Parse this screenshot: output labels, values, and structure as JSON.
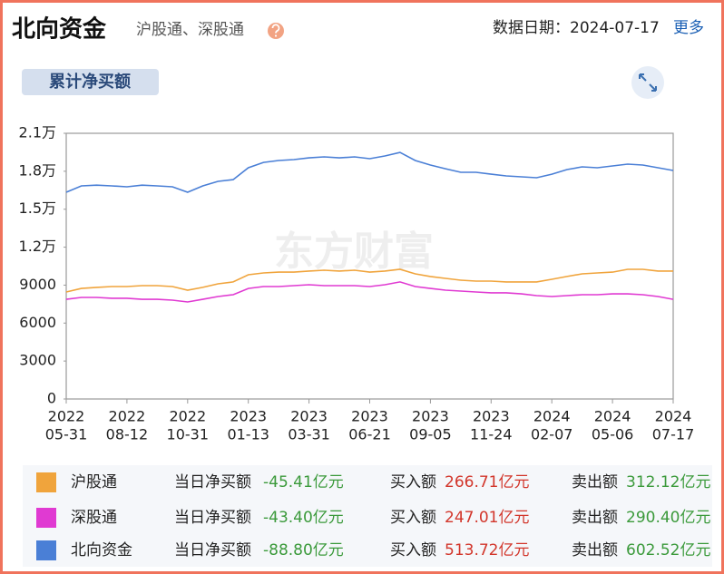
{
  "header": {
    "title": "北向资金",
    "subtitle": "沪股通、深股通",
    "date_label": "数据日期：2024-07-17",
    "more": "更多",
    "tab": "累计净买额"
  },
  "chart_data": {
    "type": "line",
    "watermark": "东方财富",
    "categories": [
      [
        "2022",
        "05-31"
      ],
      null,
      null,
      null,
      [
        "2022",
        "08-12"
      ],
      null,
      null,
      null,
      [
        "2022",
        "10-31"
      ],
      null,
      null,
      null,
      [
        "2023",
        "01-13"
      ],
      null,
      null,
      null,
      [
        "2023",
        "03-31"
      ],
      null,
      null,
      null,
      [
        "2023",
        "06-21"
      ],
      null,
      null,
      null,
      [
        "2023",
        "09-05"
      ],
      null,
      null,
      null,
      [
        "2023",
        "11-24"
      ],
      null,
      null,
      null,
      [
        "2024",
        "02-07"
      ],
      null,
      null,
      null,
      [
        "2024",
        "05-06"
      ],
      null,
      null,
      null,
      [
        "2024",
        "07-17"
      ]
    ],
    "series": [
      {
        "name": "沪股通",
        "color": "#f0a43c",
        "values": [
          8460,
          8740,
          8820,
          8890,
          8890,
          8960,
          8960,
          8890,
          8600,
          8820,
          9100,
          9250,
          9820,
          9960,
          10030,
          10030,
          10110,
          10180,
          10110,
          10180,
          10030,
          10110,
          10250,
          9890,
          9680,
          9530,
          9390,
          9320,
          9320,
          9250,
          9250,
          9250,
          9460,
          9680,
          9890,
          9960,
          10030,
          10250,
          10250,
          10110,
          10110
        ]
      },
      {
        "name": "深股通",
        "color": "#e03ad2",
        "values": [
          7880,
          8030,
          8030,
          7960,
          7960,
          7880,
          7880,
          7810,
          7670,
          7880,
          8100,
          8240,
          8740,
          8890,
          8890,
          8960,
          9030,
          8960,
          8960,
          8960,
          8890,
          9030,
          9250,
          8890,
          8740,
          8600,
          8530,
          8460,
          8390,
          8390,
          8310,
          8170,
          8100,
          8170,
          8240,
          8240,
          8310,
          8310,
          8240,
          8100,
          7880
        ]
      },
      {
        "name": "北向资金",
        "color": "#4a7fd6",
        "values": [
          16340,
          16840,
          16900,
          16840,
          16770,
          16900,
          16840,
          16770,
          16340,
          16840,
          17200,
          17340,
          18280,
          18700,
          18850,
          18920,
          19060,
          19140,
          19060,
          19140,
          18990,
          19210,
          19490,
          18850,
          18490,
          18200,
          17920,
          17920,
          17770,
          17630,
          17560,
          17490,
          17770,
          18130,
          18350,
          18280,
          18420,
          18560,
          18490,
          18280,
          18060
        ]
      }
    ],
    "ylim": [
      0,
      21000
    ],
    "yticks": [
      {
        "value": 21000,
        "label": "2.1万"
      },
      {
        "value": 18000,
        "label": "1.8万"
      },
      {
        "value": 15000,
        "label": "1.5万"
      },
      {
        "value": 12000,
        "label": "1.2万"
      },
      9000,
      6000,
      3000,
      0
    ],
    "grid": false
  },
  "summary": {
    "labels": {
      "net": "当日净买额",
      "buy": "买入额",
      "sell": "卖出额"
    },
    "rows": [
      {
        "net": "-45.41亿元",
        "buy": "266.71亿元",
        "sell": "312.12亿元"
      },
      {
        "net": "-43.40亿元",
        "buy": "247.01亿元",
        "sell": "290.40亿元"
      },
      {
        "net": "-88.80亿元",
        "buy": "513.72亿元",
        "sell": "602.52亿元"
      }
    ]
  }
}
